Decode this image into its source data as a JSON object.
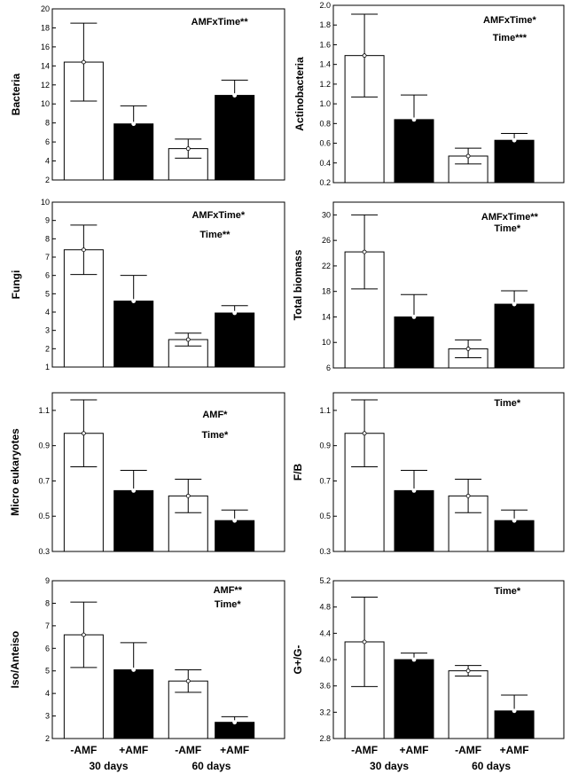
{
  "chart_data": [
    {
      "type": "bar",
      "ylabel": "Bacteria",
      "yticks": [
        "2",
        "4",
        "6",
        "8",
        "10",
        "12",
        "14",
        "16",
        "18",
        "20"
      ],
      "ylim": [
        2,
        20
      ],
      "categories": [
        "-AMF",
        "+AMF",
        "-AMF",
        "+AMF"
      ],
      "values": [
        14.4,
        7.9,
        5.3,
        10.9
      ],
      "errors": [
        4.1,
        1.9,
        1.0,
        1.6
      ],
      "annotations": [
        "AMFxTime**"
      ],
      "fills": [
        "#ffffff",
        "#000000",
        "#ffffff",
        "#000000"
      ]
    },
    {
      "type": "bar",
      "ylabel": "Actinobacteria",
      "yticks": [
        "0.2",
        "0.4",
        "0.6",
        "0.8",
        "1.0",
        "1.2",
        "1.4",
        "1.6",
        "1.8",
        "2.0"
      ],
      "ylim": [
        0.2,
        2.0
      ],
      "categories": [
        "-AMF",
        "+AMF",
        "-AMF",
        "+AMF"
      ],
      "values": [
        1.49,
        0.84,
        0.47,
        0.63
      ],
      "errors": [
        0.42,
        0.25,
        0.08,
        0.07
      ],
      "annotations": [
        "AMFxTime*",
        "Time***"
      ],
      "fills": [
        "#ffffff",
        "#000000",
        "#ffffff",
        "#000000"
      ]
    },
    {
      "type": "bar",
      "ylabel": "Fungi",
      "yticks": [
        "1",
        "2",
        "3",
        "4",
        "5",
        "6",
        "7",
        "8",
        "9",
        "10"
      ],
      "ylim": [
        1,
        10
      ],
      "categories": [
        "-AMF",
        "+AMF",
        "-AMF",
        "+AMF"
      ],
      "values": [
        7.4,
        4.6,
        2.5,
        3.95
      ],
      "errors": [
        1.35,
        1.4,
        0.35,
        0.4
      ],
      "annotations": [
        "AMFxTime*",
        "Time**"
      ],
      "fills": [
        "#ffffff",
        "#000000",
        "#ffffff",
        "#000000"
      ]
    },
    {
      "type": "bar",
      "ylabel": "Total biomass",
      "yticks": [
        "6",
        "10",
        "14",
        "18",
        "22",
        "26",
        "30"
      ],
      "ylim": [
        6,
        32
      ],
      "categories": [
        "-AMF",
        "+AMF",
        "-AMF",
        "+AMF"
      ],
      "values": [
        24.2,
        14.0,
        9.0,
        16.0
      ],
      "errors": [
        5.8,
        3.5,
        1.4,
        2.1
      ],
      "annotations": [
        "AMFxTime**",
        "Time*"
      ],
      "fills": [
        "#ffffff",
        "#000000",
        "#ffffff",
        "#000000"
      ]
    },
    {
      "type": "bar",
      "ylabel": "Micro eukaryotes",
      "yticks": [
        "0.3",
        "0.5",
        "0.7",
        "0.9",
        "1.1"
      ],
      "ylim": [
        0.3,
        1.2
      ],
      "categories": [
        "-AMF",
        "+AMF",
        "-AMF",
        "+AMF"
      ],
      "values": [
        0.97,
        0.645,
        0.615,
        0.475
      ],
      "errors": [
        0.19,
        0.115,
        0.095,
        0.06
      ],
      "annotations": [
        "AMF*",
        "Time*"
      ],
      "fills": [
        "#ffffff",
        "#000000",
        "#ffffff",
        "#000000"
      ]
    },
    {
      "type": "bar",
      "ylabel": "F/B",
      "yticks": [
        "0.3",
        "0.5",
        "0.7",
        "0.9",
        "1.1"
      ],
      "ylim": [
        0.3,
        1.2
      ],
      "categories": [
        "-AMF",
        "+AMF",
        "-AMF",
        "+AMF"
      ],
      "values": [
        0.97,
        0.645,
        0.615,
        0.475
      ],
      "errors": [
        0.19,
        0.115,
        0.095,
        0.06
      ],
      "annotations": [
        "Time*"
      ],
      "fills": [
        "#ffffff",
        "#000000",
        "#ffffff",
        "#000000"
      ]
    },
    {
      "type": "bar",
      "ylabel": "Iso/Anteiso",
      "yticks": [
        "2",
        "3",
        "4",
        "5",
        "6",
        "7",
        "8",
        "9"
      ],
      "ylim": [
        2,
        9
      ],
      "categories": [
        "-AMF",
        "+AMF",
        "-AMF",
        "+AMF"
      ],
      "values": [
        6.6,
        5.05,
        4.55,
        2.72
      ],
      "errors": [
        1.45,
        1.2,
        0.5,
        0.25
      ],
      "annotations": [
        "AMF**",
        "Time*"
      ],
      "fills": [
        "#ffffff",
        "#000000",
        "#ffffff",
        "#000000"
      ]
    },
    {
      "type": "bar",
      "ylabel": "G+/G-",
      "yticks": [
        "2.8",
        "3.2",
        "3.6",
        "4.0",
        "4.4",
        "4.8",
        "5.2"
      ],
      "ylim": [
        2.8,
        5.2
      ],
      "categories": [
        "-AMF",
        "+AMF",
        "-AMF",
        "+AMF"
      ],
      "values": [
        4.27,
        4.0,
        3.83,
        3.22
      ],
      "errors": [
        0.68,
        0.1,
        0.08,
        0.24
      ],
      "annotations": [
        "Time*"
      ],
      "fills": [
        "#ffffff",
        "#000000",
        "#ffffff",
        "#000000"
      ]
    }
  ],
  "x_axis": {
    "category_labels": [
      "-AMF",
      "+AMF",
      "-AMF",
      "+AMF"
    ],
    "group_labels": [
      "30 days",
      "60 days"
    ]
  }
}
